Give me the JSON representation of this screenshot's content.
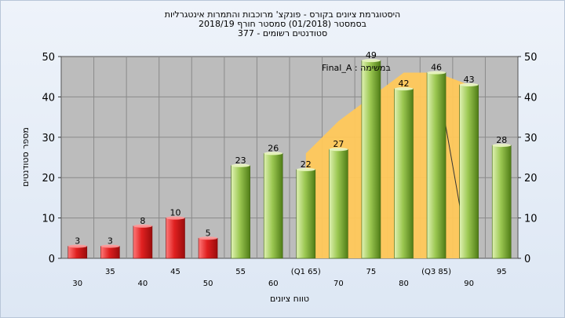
{
  "chart_data": {
    "type": "bar",
    "title_lines": [
      "היסטוגרמת ציונים בקורס - פונקצ' מרוכבות והתמרות אינטגרליות",
      "בסמסטר  (01/2018)  סמסטר חורף 2018/19",
      "סטודנטים רשומים - 377"
    ],
    "annotation": "במשימה : Final_A",
    "xlabel": "טווח ציונים",
    "ylabel": "מספר סטודנטים",
    "ylim": [
      0,
      50
    ],
    "yticks": [
      0,
      10,
      20,
      30,
      40,
      50
    ],
    "categories": [
      "30",
      "35",
      "40",
      "45",
      "50",
      "55",
      "60",
      "(Q1 65)",
      "70",
      "75",
      "80",
      "(Q3 85)",
      "90",
      "95"
    ],
    "values": [
      3,
      3,
      8,
      10,
      5,
      23,
      26,
      22,
      27,
      49,
      42,
      46,
      43,
      28
    ],
    "bar_colors": [
      "red",
      "red",
      "red",
      "red",
      "red",
      "green",
      "green",
      "green",
      "green",
      "green",
      "green",
      "green",
      "green",
      "green"
    ],
    "iqr_band": {
      "categories": [
        "(Q1 65)",
        "70",
        "75",
        "80",
        "(Q3 85)",
        "90"
      ],
      "values": [
        26,
        34,
        40,
        46,
        46,
        43
      ]
    },
    "grid": true,
    "legend": "none"
  },
  "colors": {
    "plot_bg": "#bcbcbc",
    "grid": "#8a8a8a",
    "red_light": "#ff6b6b",
    "red_dark": "#b80f0f",
    "green_light": "#cfe89a",
    "green_dark": "#5f8f1e",
    "band": "#ffc85a"
  }
}
